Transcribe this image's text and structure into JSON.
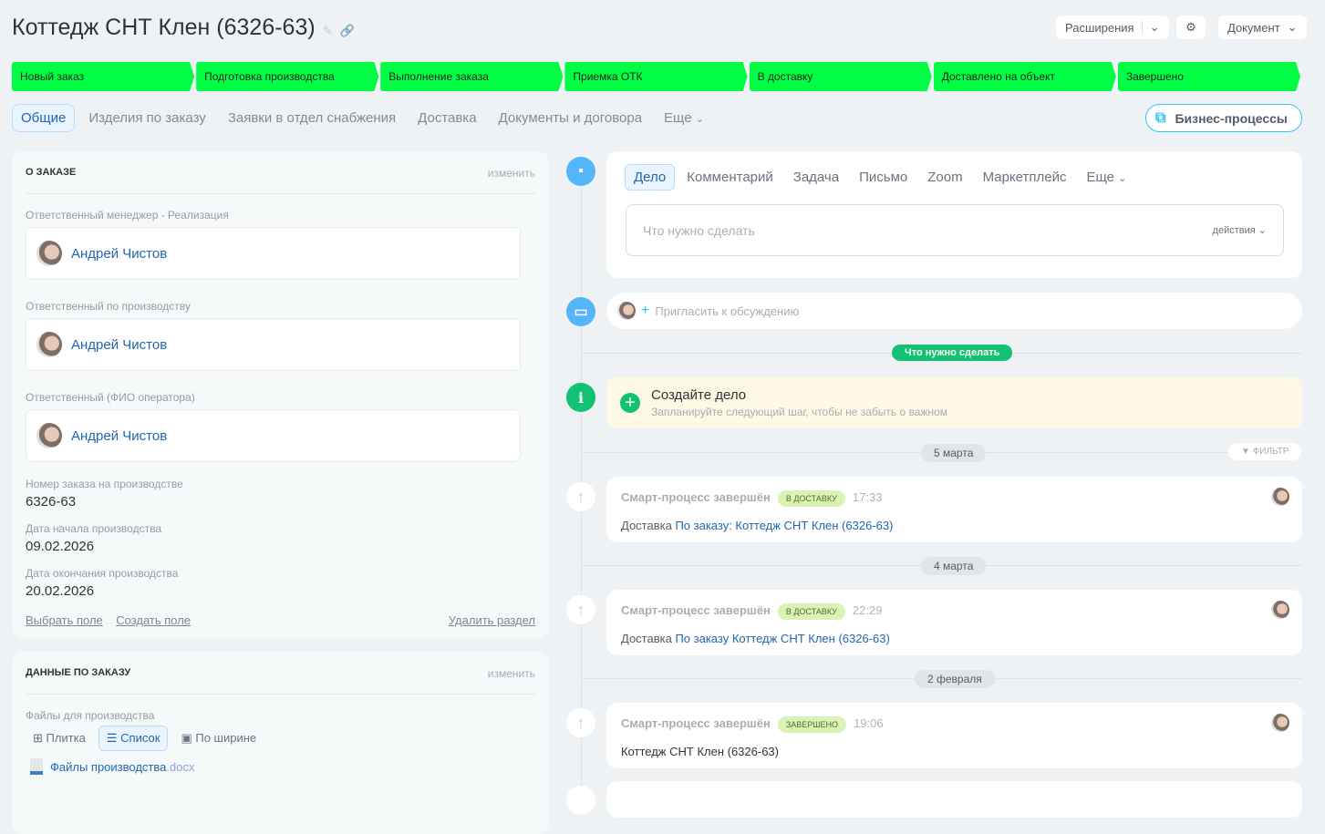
{
  "header": {
    "title": "Коттедж СНТ Клен (6326-63)",
    "extensions": "Расширения",
    "document": "Документ"
  },
  "stages": [
    "Новый заказ",
    "Подготовка производства",
    "Выполнение заказа",
    "Приемка ОТК",
    "В доставку",
    "Доставлено на объект",
    "Завершено"
  ],
  "stage_color": "#00ff44",
  "tabs": [
    "Общие",
    "Изделия по заказу",
    "Заявки в отдел снабжения",
    "Доставка",
    "Документы и договора",
    "Еще"
  ],
  "business_processes": "Бизнес-процессы",
  "about": {
    "title": "О ЗАКАЗЕ",
    "edit": "изменить",
    "fields": [
      {
        "label": "Ответственный менеджер - Реализация",
        "user": "Андрей Чистов"
      },
      {
        "label": "Ответственный по производству",
        "user": "Андрей Чистов"
      },
      {
        "label": "Ответственный (ФИО оператора)",
        "user": "Андрей Чистов"
      }
    ],
    "order_no_label": "Номер заказа на производстве",
    "order_no": "6326-63",
    "start_label": "Дата начала производства",
    "start": "09.02.2026",
    "end_label": "Дата окончания производства",
    "end": "20.02.2026",
    "select_field": "Выбрать поле",
    "create_field": "Создать поле",
    "delete_section": "Удалить раздел"
  },
  "order_data": {
    "title": "ДАННЫЕ ПО ЗАКАЗУ",
    "edit": "изменить",
    "files_label": "Файлы для производства",
    "view_tile": "Плитка",
    "view_list": "Список",
    "view_width": "По ширине",
    "file_name": "Файлы производства",
    "file_ext": ".docx"
  },
  "editor": {
    "tabs": [
      "Дело",
      "Комментарий",
      "Задача",
      "Письмо",
      "Zoom",
      "Маркетплейс",
      "Еще"
    ],
    "placeholder": "Что нужно сделать",
    "actions": "действия"
  },
  "invite": "Пригласить к обсуждению",
  "todo_pill": "Что нужно сделать",
  "create": {
    "title": "Создайте дело",
    "subtitle": "Запланируйте следующий шаг, чтобы не забыть о важном"
  },
  "filter": "ФИЛЬТР",
  "events": [
    {
      "date": "5 марта",
      "title": "Смарт-процесс завершён",
      "badge": "В ДОСТАВКУ",
      "time": "17:33",
      "prefix": "Доставка",
      "link": "По заказу: Коттедж СНТ Клен (6326-63)"
    },
    {
      "date": "4 марта",
      "title": "Смарт-процесс завершён",
      "badge": "В ДОСТАВКУ",
      "time": "22:29",
      "prefix": "Доставка",
      "link": "По заказу Коттедж СНТ Клен (6326-63)"
    },
    {
      "date": "2 февраля",
      "title": "Смарт-процесс завершён",
      "badge": "ЗАВЕРШЕНО",
      "time": "19:06",
      "prefix": "",
      "link": "Коттедж СНТ Клен (6326-63)"
    }
  ]
}
